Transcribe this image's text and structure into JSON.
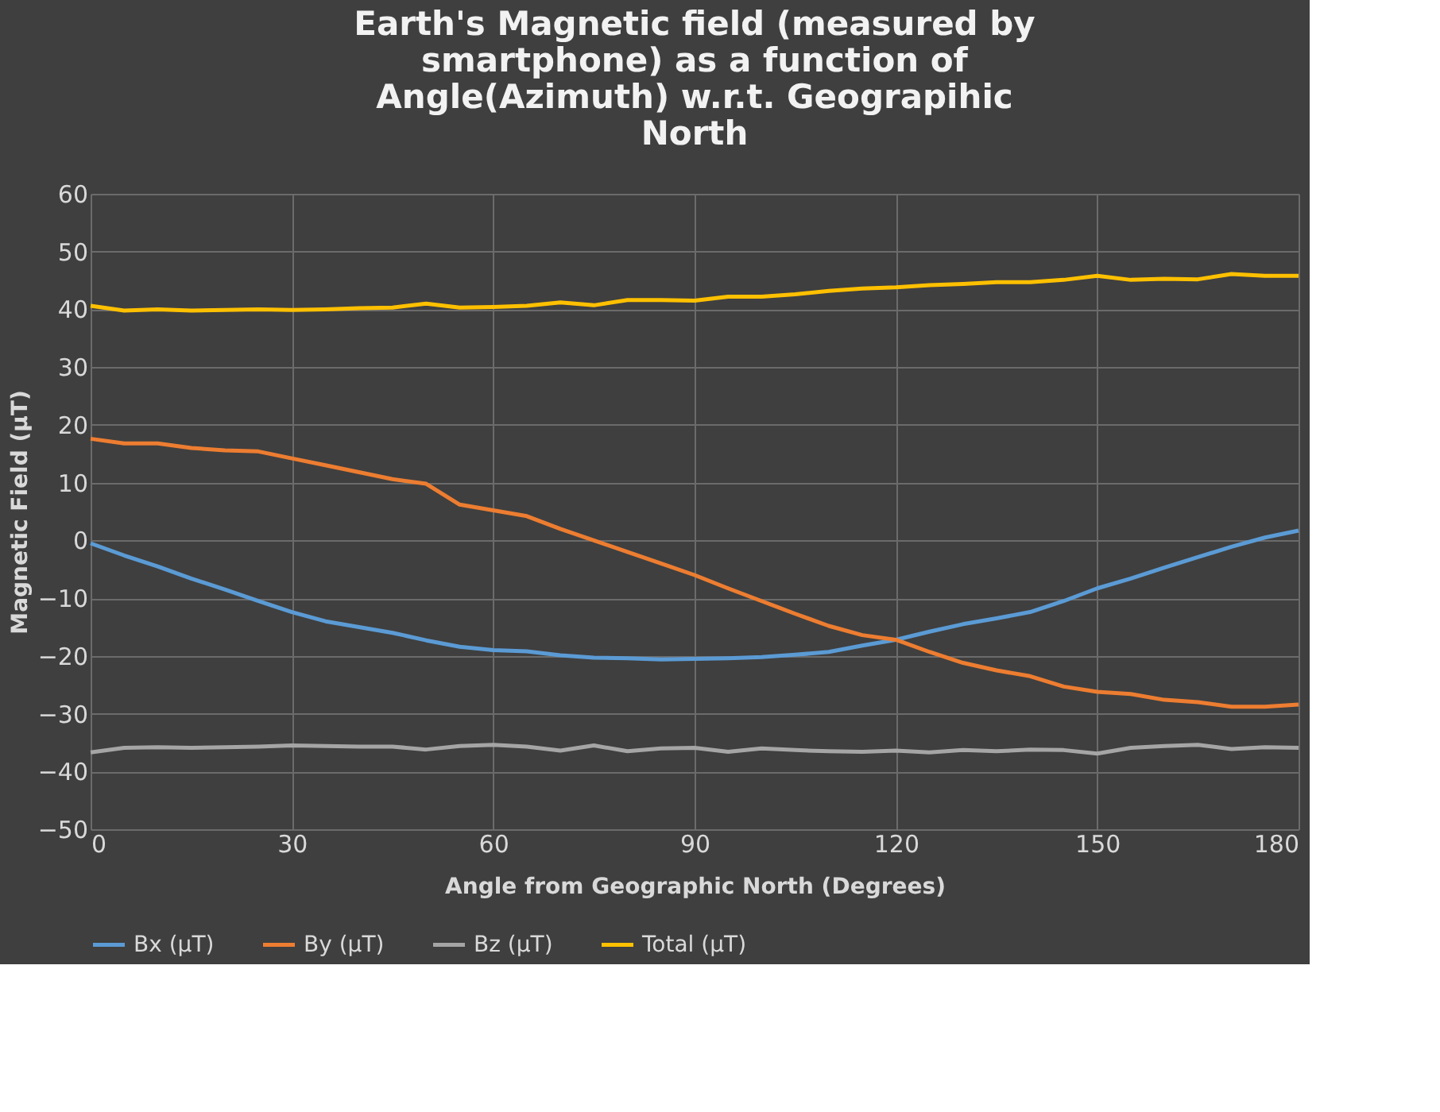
{
  "chart_data": {
    "type": "line",
    "title": "Earth's Magnetic field (measured by smartphone) as a function of Angle(Azimuth) w.r.t. Geograpihic North",
    "xlabel": "Angle from Geographic North (Degrees)",
    "ylabel": "Magnetic Field (µT)",
    "x": [
      0,
      5,
      10,
      15,
      20,
      25,
      30,
      35,
      40,
      45,
      50,
      55,
      60,
      65,
      70,
      75,
      80,
      85,
      90,
      95,
      100,
      105,
      110,
      115,
      120,
      125,
      130,
      135,
      140,
      145,
      150,
      155,
      160,
      165,
      170,
      175,
      180
    ],
    "series": [
      {
        "name": "Bx (µT)",
        "color": "#5b9bd5",
        "values": [
          -0.5,
          -2.6,
          -4.5,
          -6.6,
          -8.5,
          -10.5,
          -12.4,
          -14,
          -15,
          -16,
          -17.3,
          -18.4,
          -19,
          -19.2,
          -19.9,
          -20.3,
          -20.4,
          -20.6,
          -20.5,
          -20.4,
          -20.2,
          -19.8,
          -19.3,
          -18.2,
          -17.2,
          -15.8,
          -14.5,
          -13.5,
          -12.4,
          -10.5,
          -8.3,
          -6.6,
          -4.7,
          -2.9,
          -1.1,
          0.5,
          1.7
        ]
      },
      {
        "name": "By (µT)",
        "color": "#ed7d31",
        "values": [
          17.6,
          16.8,
          16.8,
          16,
          15.6,
          15.4,
          14.2,
          13,
          11.8,
          10.6,
          9.8,
          6.2,
          5.2,
          4.2,
          2,
          0,
          -2,
          -4,
          -6,
          -8.3,
          -10.5,
          -12.7,
          -14.8,
          -16.4,
          -17.2,
          -19.3,
          -21.2,
          -22.5,
          -23.5,
          -25.3,
          -26.2,
          -26.6,
          -27.6,
          -28,
          -28.8,
          -28.8,
          -28.4
        ]
      },
      {
        "name": "Bz (µT)",
        "color": "#a5a5a5",
        "values": [
          -36.7,
          -35.9,
          -35.8,
          -35.9,
          -35.8,
          -35.7,
          -35.5,
          -35.6,
          -35.7,
          -35.7,
          -36.2,
          -35.6,
          -35.4,
          -35.7,
          -36.4,
          -35.5,
          -36.5,
          -36,
          -35.9,
          -36.6,
          -36,
          -36.3,
          -36.5,
          -36.6,
          -36.4,
          -36.7,
          -36.3,
          -36.5,
          -36.2,
          -36.3,
          -36.9,
          -35.9,
          -35.6,
          -35.4,
          -36.1,
          -35.8,
          -35.9
        ]
      },
      {
        "name": "Total (µT)",
        "color": "#ffc000",
        "values": [
          40.6,
          39.8,
          40,
          39.8,
          39.9,
          40,
          39.9,
          40,
          40.2,
          40.3,
          41,
          40.3,
          40.4,
          40.6,
          41.2,
          40.7,
          41.6,
          41.6,
          41.5,
          42.2,
          42.2,
          42.6,
          43.2,
          43.6,
          43.8,
          44.2,
          44.4,
          44.7,
          44.7,
          45.1,
          45.8,
          45.1,
          45.3,
          45.2,
          46.1,
          45.8,
          45.8
        ]
      }
    ],
    "xlim": [
      0,
      180
    ],
    "xticks": [
      0,
      30,
      60,
      90,
      120,
      150,
      180
    ],
    "ylim": [
      -50,
      60
    ],
    "yticks": [
      -50,
      -40,
      -30,
      -20,
      -10,
      0,
      10,
      20,
      30,
      40,
      50,
      60
    ],
    "grid": true,
    "legend": "bottom",
    "marker": "none",
    "line_style": "solid"
  }
}
